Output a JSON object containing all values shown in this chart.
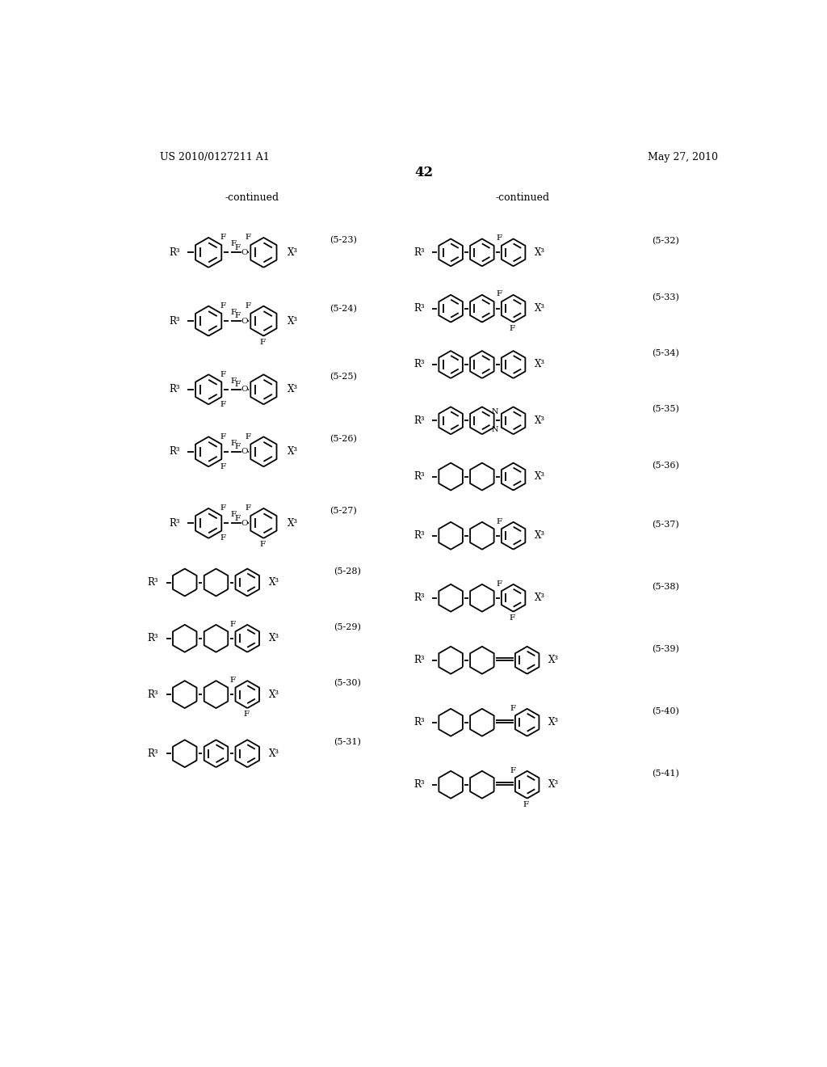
{
  "patent_number": "US 2010/0127211 A1",
  "date": "May 27, 2010",
  "page_number": "42",
  "left_header": "-continued",
  "right_header": "-continued",
  "background": "#ffffff"
}
